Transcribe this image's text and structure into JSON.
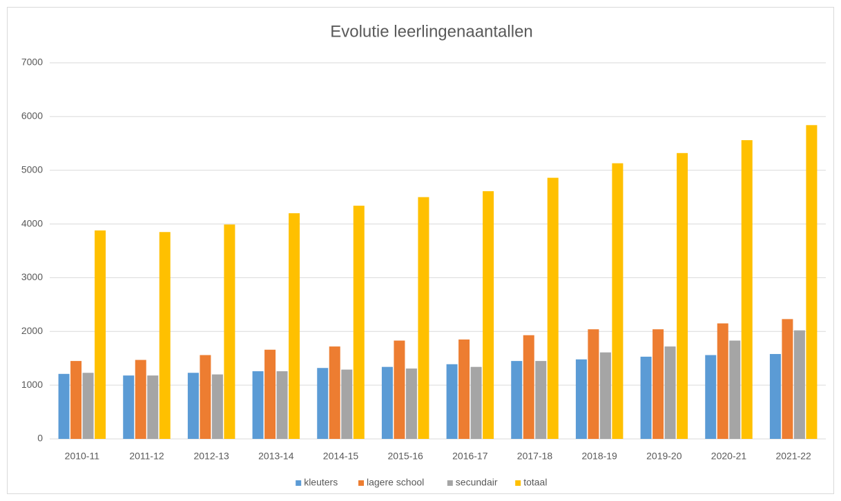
{
  "chart_data": {
    "type": "bar",
    "title": "Evolutie leerlingenaantallen",
    "categories": [
      "2010-11",
      "2011-12",
      "2012-13",
      "2013-14",
      "2014-15",
      "2015-16",
      "2016-17",
      "2017-18",
      "2018-19",
      "2019-20",
      "2020-21",
      "2021-22"
    ],
    "series": [
      {
        "name": "kleuters",
        "color": "#5b9bd5",
        "values": [
          1210,
          1180,
          1230,
          1260,
          1320,
          1340,
          1390,
          1450,
          1480,
          1530,
          1560,
          1580
        ]
      },
      {
        "name": "lagere school",
        "color": "#ed7d31",
        "values": [
          1450,
          1470,
          1560,
          1660,
          1720,
          1830,
          1850,
          1930,
          2040,
          2040,
          2150,
          2230
        ]
      },
      {
        "name": "secundair",
        "color": "#a5a5a5",
        "values": [
          1230,
          1180,
          1200,
          1260,
          1290,
          1310,
          1340,
          1450,
          1610,
          1720,
          1830,
          2020
        ]
      },
      {
        "name": "totaal",
        "color": "#ffc000",
        "values": [
          3880,
          3850,
          3990,
          4200,
          4340,
          4500,
          4610,
          4860,
          5130,
          5320,
          5560,
          5840
        ]
      }
    ],
    "ylim": [
      0,
      7000
    ],
    "yticks": [
      0,
      1000,
      2000,
      3000,
      4000,
      5000,
      6000,
      7000
    ],
    "grid": true,
    "legend": "bottom"
  }
}
